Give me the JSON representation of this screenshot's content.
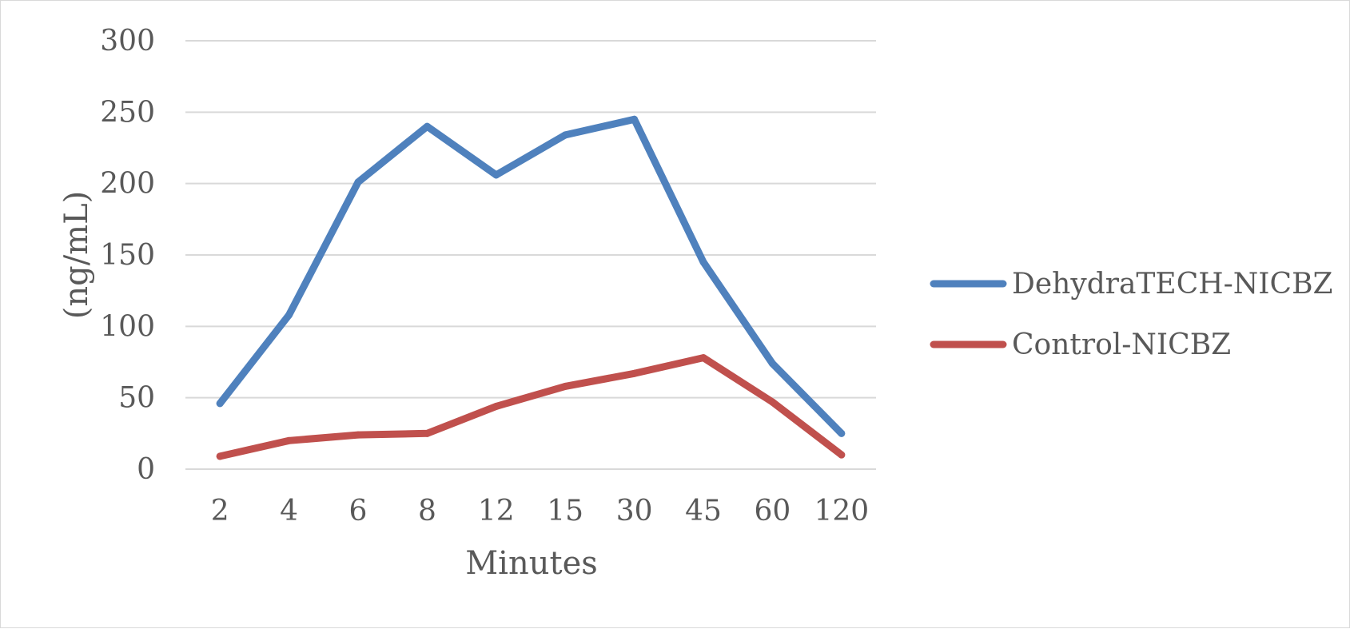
{
  "chart_data": {
    "type": "line",
    "title": "",
    "xlabel": "Minutes",
    "ylabel": "(ng/mL)",
    "categories": [
      "2",
      "4",
      "6",
      "8",
      "12",
      "15",
      "30",
      "45",
      "60",
      "120"
    ],
    "ylim": [
      0,
      300
    ],
    "yticks": [
      0,
      50,
      100,
      150,
      200,
      250,
      300
    ],
    "grid": "horizontal",
    "legend_position": "right",
    "series": [
      {
        "name": "DehydraTECH-NICBZ",
        "color": "#4f81bd",
        "values": [
          46,
          108,
          201,
          240,
          206,
          234,
          245,
          145,
          74,
          25
        ]
      },
      {
        "name": "Control-NICBZ",
        "color": "#c0504d",
        "values": [
          9,
          20,
          24,
          25,
          44,
          58,
          67,
          78,
          47,
          10
        ]
      }
    ]
  }
}
